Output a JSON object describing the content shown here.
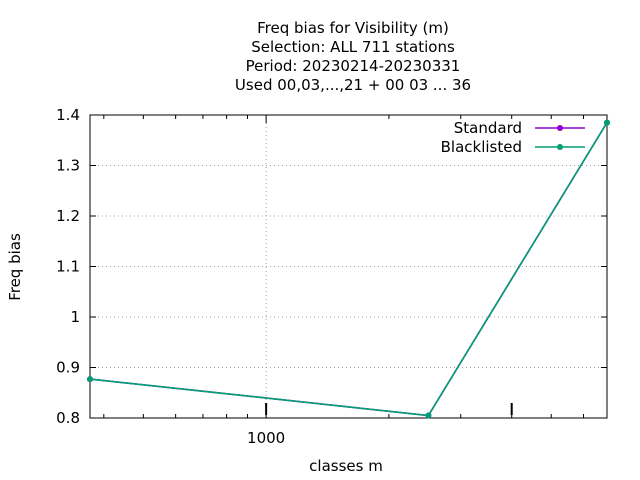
{
  "chart_data": {
    "type": "line",
    "title_lines": [
      "Freq bias  for Visibility (m)",
      "Selection: ALL    711 stations",
      "Period: 20230214-20230331",
      "Used  00,03,...,21  + 00 03 ... 36"
    ],
    "xlabel": "classes m",
    "ylabel": "Freq bias",
    "x_scale": "log",
    "xlim": [
      370,
      6850
    ],
    "ylim": [
      0.8,
      1.4
    ],
    "x_tick_labels": [
      {
        "value": 1000,
        "label": "1000"
      }
    ],
    "x_minor_ticks": [
      400,
      500,
      600,
      700,
      800,
      900,
      2000,
      3000,
      4000,
      5000,
      6000
    ],
    "x_major_marks": [
      1000,
      4000
    ],
    "y_ticks": [
      0.8,
      0.9,
      1.0,
      1.1,
      1.2,
      1.3,
      1.4
    ],
    "y_tick_labels": [
      "0.8",
      "0.9",
      "1",
      "1.1",
      "1.2",
      "1.3",
      "1.4"
    ],
    "grid": true,
    "legend_position": "top-right",
    "series": [
      {
        "name": "Standard",
        "color": "#9400D3",
        "x": [
          370,
          2500,
          6850
        ],
        "y": [
          0.877,
          0.805,
          1.385
        ]
      },
      {
        "name": "Blacklisted",
        "color": "#009E73",
        "x": [
          370,
          2500,
          6850
        ],
        "y": [
          0.877,
          0.805,
          1.385
        ]
      }
    ]
  }
}
